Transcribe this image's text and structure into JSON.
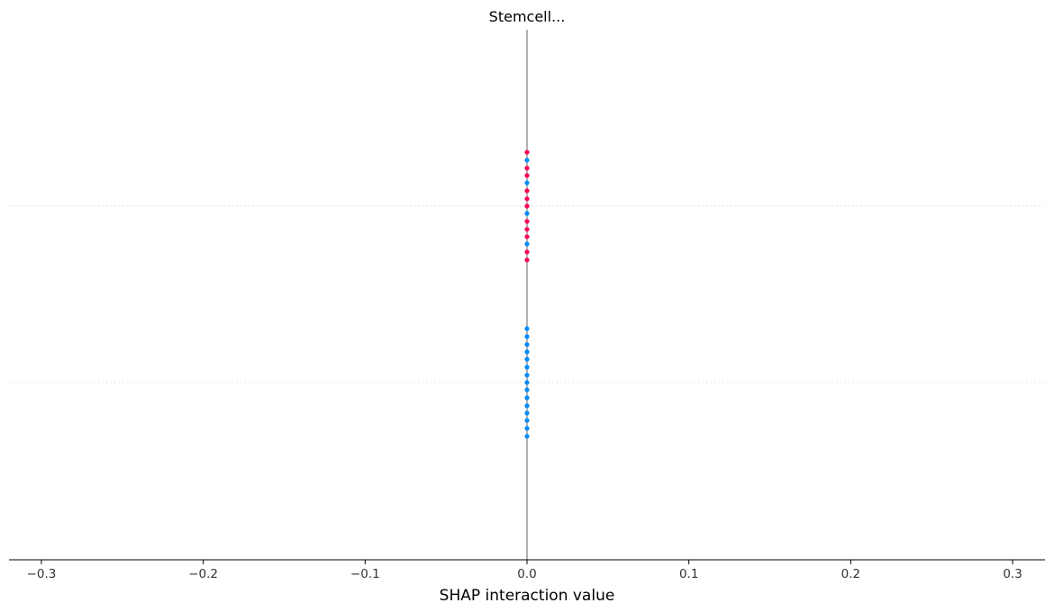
{
  "chart_data": {
    "type": "scatter",
    "title": "Stemcell...",
    "xlabel": "SHAP interaction value",
    "ylabel": "",
    "xlim": [
      -0.32,
      0.32
    ],
    "xticks": [
      -0.3,
      -0.2,
      -0.1,
      0.0,
      0.1,
      0.2,
      0.3
    ],
    "xtick_labels": [
      "−0.3",
      "−0.2",
      "−0.1",
      "0.0",
      "0.1",
      "0.2",
      "0.3"
    ],
    "zero_line": true,
    "rows": [
      {
        "points": [
          {
            "x": 0.0,
            "y": 0.0,
            "color": "#ff0052"
          },
          {
            "x": 0.0,
            "y": -0.88,
            "color": "#ff0052"
          },
          {
            "x": 0.0,
            "y": -0.75,
            "color": "#008bfb"
          },
          {
            "x": 0.0,
            "y": -0.62,
            "color": "#ff0052"
          },
          {
            "x": 0.0,
            "y": -0.5,
            "color": "#ff0052"
          },
          {
            "x": 0.0,
            "y": -0.38,
            "color": "#008bfb"
          },
          {
            "x": 0.0,
            "y": -0.25,
            "color": "#ff0052"
          },
          {
            "x": 0.0,
            "y": -0.12,
            "color": "#ff0052"
          },
          {
            "x": 0.0,
            "y": 0.12,
            "color": "#008bfb"
          },
          {
            "x": 0.0,
            "y": 0.25,
            "color": "#ff0052"
          },
          {
            "x": 0.0,
            "y": 0.38,
            "color": "#ff0052"
          },
          {
            "x": 0.0,
            "y": 0.5,
            "color": "#ff0052"
          },
          {
            "x": 0.0,
            "y": 0.62,
            "color": "#008bfb"
          },
          {
            "x": 0.0,
            "y": 0.75,
            "color": "#ff0052"
          },
          {
            "x": 0.0,
            "y": 0.88,
            "color": "#ff0052"
          }
        ]
      },
      {
        "points": [
          {
            "x": 0.0,
            "y": -0.88,
            "color": "#008bfb"
          },
          {
            "x": 0.0,
            "y": -0.75,
            "color": "#008bfb"
          },
          {
            "x": 0.0,
            "y": -0.62,
            "color": "#008bfb"
          },
          {
            "x": 0.0,
            "y": -0.5,
            "color": "#008bfb"
          },
          {
            "x": 0.0,
            "y": -0.38,
            "color": "#008bfb"
          },
          {
            "x": 0.0,
            "y": -0.25,
            "color": "#008bfb"
          },
          {
            "x": 0.0,
            "y": -0.12,
            "color": "#008bfb"
          },
          {
            "x": 0.0,
            "y": 0.0,
            "color": "#008bfb"
          },
          {
            "x": 0.0,
            "y": 0.12,
            "color": "#008bfb"
          },
          {
            "x": 0.0,
            "y": 0.25,
            "color": "#008bfb"
          },
          {
            "x": 0.0,
            "y": 0.38,
            "color": "#008bfb"
          },
          {
            "x": 0.0,
            "y": 0.5,
            "color": "#008bfb"
          },
          {
            "x": 0.0,
            "y": 0.62,
            "color": "#008bfb"
          },
          {
            "x": 0.0,
            "y": 0.75,
            "color": "#008bfb"
          },
          {
            "x": 0.0,
            "y": 0.88,
            "color": "#008bfb"
          }
        ]
      }
    ],
    "colors": {
      "high": "#ff0052",
      "low": "#008bfb",
      "zero_line": "#999999",
      "axis": "#000000",
      "row_grid": "#dddddd"
    }
  }
}
